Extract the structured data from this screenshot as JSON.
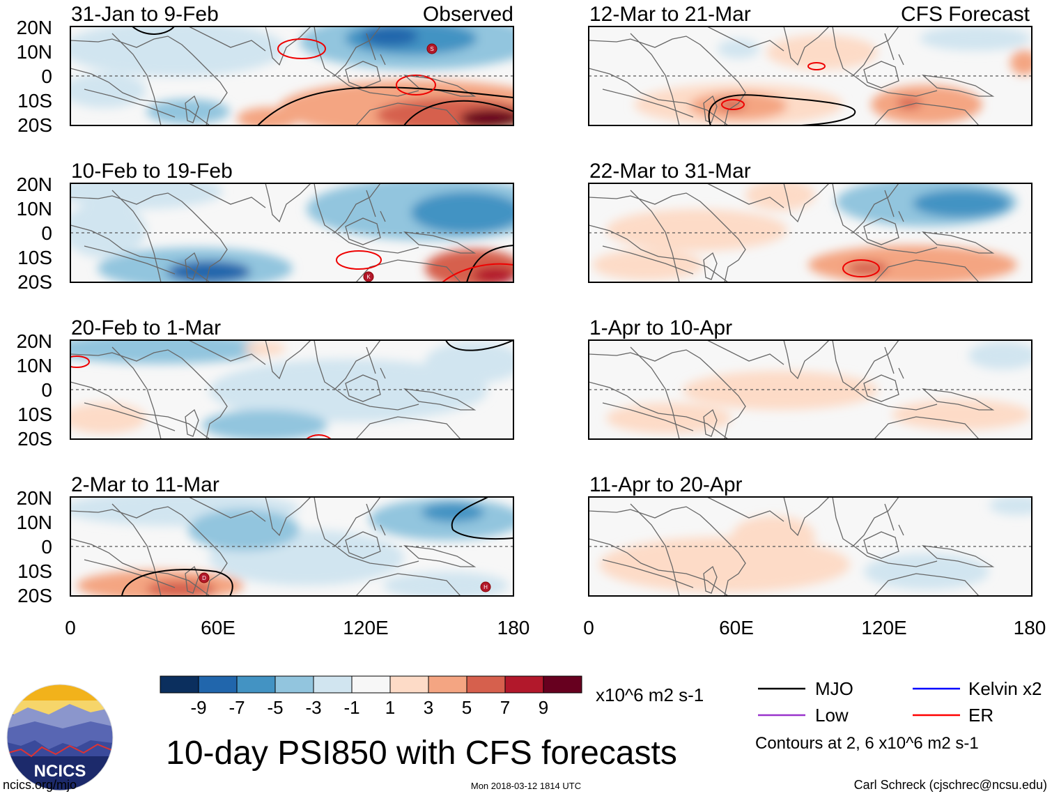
{
  "title": "10-day PSI850 with CFS forecasts",
  "panel_sets": {
    "left_label": "Observed",
    "right_label": "CFS Forecast"
  },
  "panels_left": [
    {
      "period": "31-Jan to 9-Feb"
    },
    {
      "period": "10-Feb to 19-Feb"
    },
    {
      "period": "20-Feb to 1-Mar"
    },
    {
      "period": "2-Mar to 11-Mar"
    }
  ],
  "panels_right": [
    {
      "period": "12-Mar to 21-Mar"
    },
    {
      "period": "22-Mar to 31-Mar"
    },
    {
      "period": "1-Apr to 10-Apr"
    },
    {
      "period": "11-Apr to 20-Apr"
    }
  ],
  "axes": {
    "lat_labels": [
      "20N",
      "10N",
      "0",
      "10S",
      "20S"
    ],
    "lon_labels": [
      "0",
      "60E",
      "120E",
      "180"
    ],
    "lat_range": [
      -20,
      20
    ],
    "lon_range": [
      0,
      180
    ]
  },
  "colorbar": {
    "units": "x10^6 m2 s-1",
    "tick_labels": [
      "-9",
      "-7",
      "-5",
      "-3",
      "-1",
      "1",
      "3",
      "5",
      "7",
      "9"
    ],
    "colors": [
      "#0b2f5e",
      "#2166ac",
      "#4393c3",
      "#92c5de",
      "#d1e5f0",
      "#f7f7f7",
      "#fddbc7",
      "#f4a582",
      "#d6604d",
      "#b2182b",
      "#67001f"
    ]
  },
  "legend": {
    "items": [
      {
        "label": "MJO",
        "color": "#000000"
      },
      {
        "label": "Kelvin x2",
        "color": "#0000ff"
      },
      {
        "label": "Low",
        "color": "#9933cc"
      },
      {
        "label": "ER",
        "color": "#ff0000"
      }
    ],
    "contour_note": "Contours at 2, 6 x10^6 m2 s-1"
  },
  "storm_markers": [
    "S",
    "K",
    "D",
    "H"
  ],
  "logo": {
    "text": "NCICS"
  },
  "footer": {
    "left": "ncics.org/mjo",
    "center": "Mon 2018-03-12 1814 UTC",
    "right": "Carl Schreck (cjschrec@ncsu.edu)"
  }
}
